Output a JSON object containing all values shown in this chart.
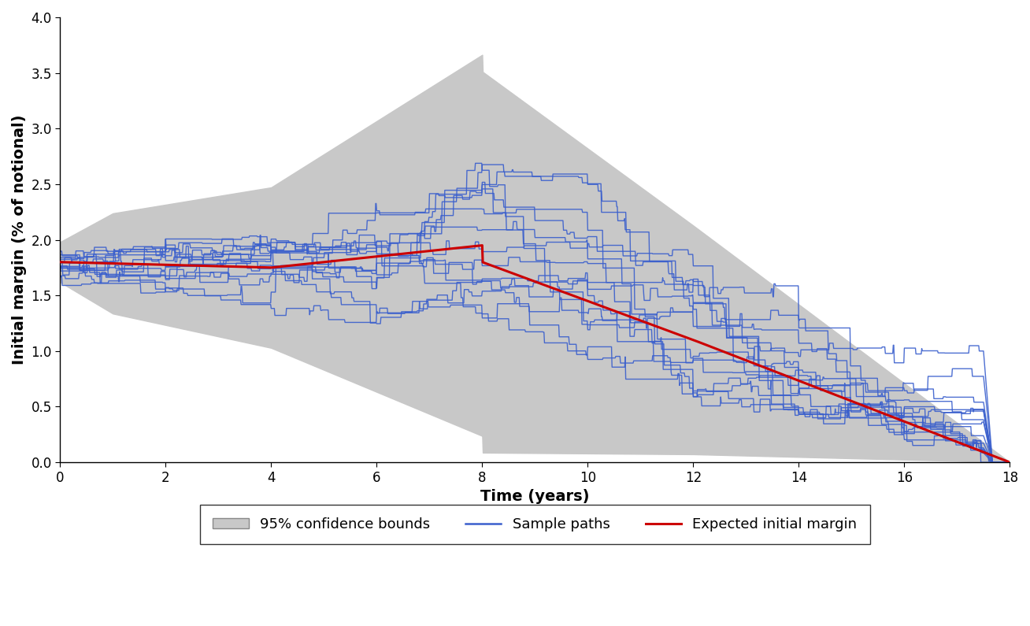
{
  "title": "",
  "xlabel": "Time (years)",
  "ylabel": "Initial margin (% of notional)",
  "xlim": [
    0,
    18
  ],
  "ylim": [
    0,
    4.0
  ],
  "xticks": [
    0,
    2,
    4,
    6,
    8,
    10,
    12,
    14,
    16,
    18
  ],
  "yticks": [
    0.0,
    0.5,
    1.0,
    1.5,
    2.0,
    2.5,
    3.0,
    3.5,
    4.0
  ],
  "t_max": 18,
  "n_paths": 15,
  "seed": 12345,
  "gray_color": "#c8c8c8",
  "blue_color": "#3a5fcd",
  "red_color": "#cc0000",
  "background_color": "#ffffff",
  "legend_labels": [
    "95% confidence bounds",
    "Sample paths",
    "Expected initial margin"
  ],
  "figsize": [
    13.08,
    7.95
  ],
  "dpi": 100,
  "call_dates": [
    2.0,
    4.0,
    6.0,
    8.0,
    10.0,
    12.0,
    14.0,
    16.0,
    18.0
  ]
}
